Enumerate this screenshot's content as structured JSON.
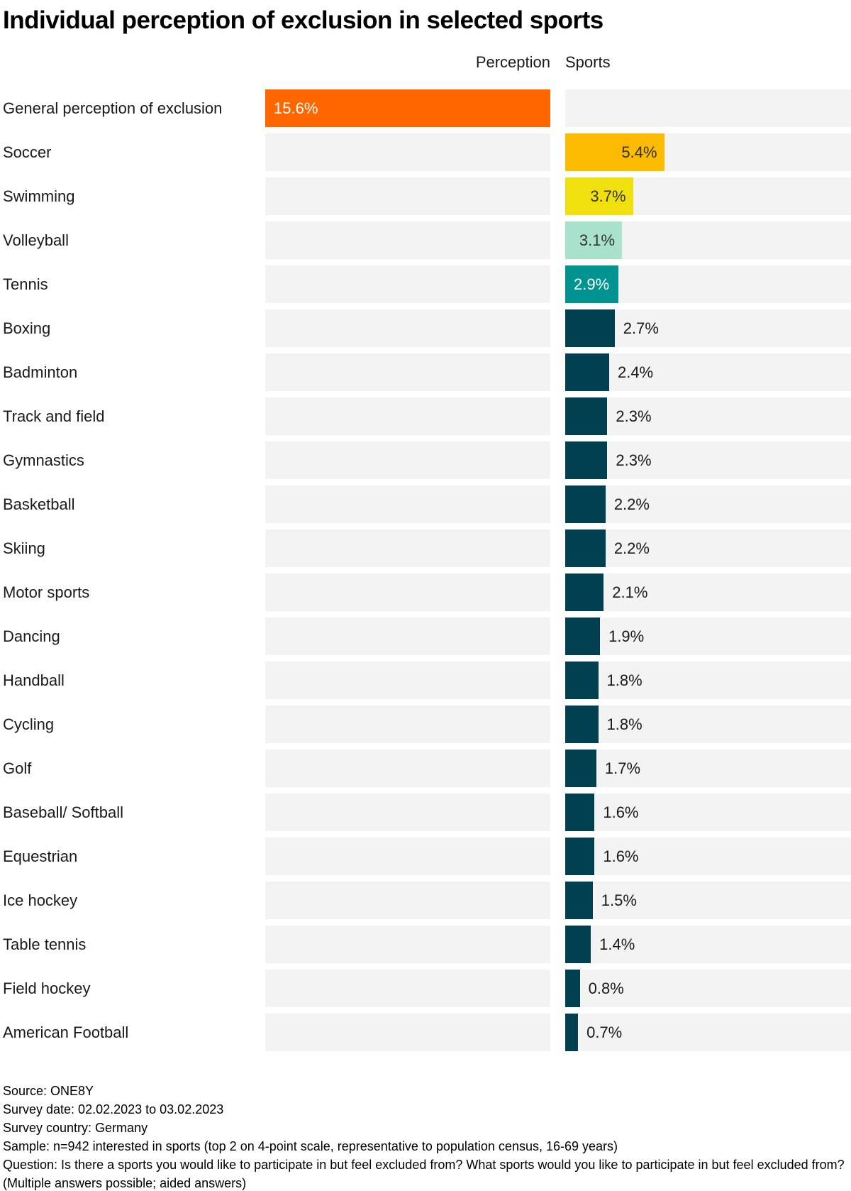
{
  "page": {
    "title": "Individual perception of exclusion in selected sports"
  },
  "headers": {
    "perception": "Perception",
    "sports": "Sports"
  },
  "colors": {
    "background": "#FFFFFF",
    "track": "#F3F3F3",
    "general_bar": "#FF6600",
    "soccer_bar": "#FCBA00",
    "swimming_bar": "#F0E10E",
    "volleyball_bar": "#A8E2CD",
    "tennis_bar": "#009390",
    "default_sport_bar": "#004050",
    "value_dark": "#333333",
    "value_light": "#FFFFFF",
    "text": "#1A1A1A"
  },
  "chart_data": {
    "type": "bar",
    "orientation": "horizontal",
    "title": "Individual perception of exclusion in selected sports",
    "unit": "%",
    "scale_max_percent": 15.6,
    "columns": [
      "Perception",
      "Sports"
    ],
    "legend_position": "none",
    "grid": false,
    "rows": [
      {
        "label": "General perception of exclusion",
        "value": 15.6,
        "display": "15.6%",
        "column": "perception",
        "bar_color": "#FF6600",
        "value_color": "#FFFFFF",
        "value_position": "inside-left"
      },
      {
        "label": "Soccer",
        "value": 5.4,
        "display": "5.4%",
        "column": "sports",
        "bar_color": "#FCBA00",
        "value_color": "#333333",
        "value_position": "inside-right"
      },
      {
        "label": "Swimming",
        "value": 3.7,
        "display": "3.7%",
        "column": "sports",
        "bar_color": "#F0E10E",
        "value_color": "#333333",
        "value_position": "inside-right"
      },
      {
        "label": "Volleyball",
        "value": 3.1,
        "display": "3.1%",
        "column": "sports",
        "bar_color": "#A8E2CD",
        "value_color": "#333333",
        "value_position": "inside-right"
      },
      {
        "label": "Tennis",
        "value": 2.9,
        "display": "2.9%",
        "column": "sports",
        "bar_color": "#009390",
        "value_color": "#FFFFFF",
        "value_position": "inside-left"
      },
      {
        "label": "Boxing",
        "value": 2.7,
        "display": "2.7%",
        "column": "sports",
        "bar_color": "#004050",
        "value_color": "#1A1A1A",
        "value_position": "outside"
      },
      {
        "label": "Badminton",
        "value": 2.4,
        "display": "2.4%",
        "column": "sports",
        "bar_color": "#004050",
        "value_color": "#1A1A1A",
        "value_position": "outside"
      },
      {
        "label": "Track and field",
        "value": 2.3,
        "display": "2.3%",
        "column": "sports",
        "bar_color": "#004050",
        "value_color": "#1A1A1A",
        "value_position": "outside"
      },
      {
        "label": "Gymnastics",
        "value": 2.3,
        "display": "2.3%",
        "column": "sports",
        "bar_color": "#004050",
        "value_color": "#1A1A1A",
        "value_position": "outside"
      },
      {
        "label": "Basketball",
        "value": 2.2,
        "display": "2.2%",
        "column": "sports",
        "bar_color": "#004050",
        "value_color": "#1A1A1A",
        "value_position": "outside"
      },
      {
        "label": "Skiing",
        "value": 2.2,
        "display": "2.2%",
        "column": "sports",
        "bar_color": "#004050",
        "value_color": "#1A1A1A",
        "value_position": "outside"
      },
      {
        "label": "Motor sports",
        "value": 2.1,
        "display": "2.1%",
        "column": "sports",
        "bar_color": "#004050",
        "value_color": "#1A1A1A",
        "value_position": "outside"
      },
      {
        "label": "Dancing",
        "value": 1.9,
        "display": "1.9%",
        "column": "sports",
        "bar_color": "#004050",
        "value_color": "#1A1A1A",
        "value_position": "outside"
      },
      {
        "label": "Handball",
        "value": 1.8,
        "display": "1.8%",
        "column": "sports",
        "bar_color": "#004050",
        "value_color": "#1A1A1A",
        "value_position": "outside"
      },
      {
        "label": "Cycling",
        "value": 1.8,
        "display": "1.8%",
        "column": "sports",
        "bar_color": "#004050",
        "value_color": "#1A1A1A",
        "value_position": "outside"
      },
      {
        "label": "Golf",
        "value": 1.7,
        "display": "1.7%",
        "column": "sports",
        "bar_color": "#004050",
        "value_color": "#1A1A1A",
        "value_position": "outside"
      },
      {
        "label": "Baseball/ Softball",
        "value": 1.6,
        "display": "1.6%",
        "column": "sports",
        "bar_color": "#004050",
        "value_color": "#1A1A1A",
        "value_position": "outside"
      },
      {
        "label": "Equestrian",
        "value": 1.6,
        "display": "1.6%",
        "column": "sports",
        "bar_color": "#004050",
        "value_color": "#1A1A1A",
        "value_position": "outside"
      },
      {
        "label": "Ice hockey",
        "value": 1.5,
        "display": "1.5%",
        "column": "sports",
        "bar_color": "#004050",
        "value_color": "#1A1A1A",
        "value_position": "outside"
      },
      {
        "label": "Table tennis",
        "value": 1.4,
        "display": "1.4%",
        "column": "sports",
        "bar_color": "#004050",
        "value_color": "#1A1A1A",
        "value_position": "outside"
      },
      {
        "label": "Field hockey",
        "value": 0.8,
        "display": "0.8%",
        "column": "sports",
        "bar_color": "#004050",
        "value_color": "#1A1A1A",
        "value_position": "outside"
      },
      {
        "label": "American Football",
        "value": 0.7,
        "display": "0.7%",
        "column": "sports",
        "bar_color": "#004050",
        "value_color": "#1A1A1A",
        "value_position": "outside"
      }
    ]
  },
  "footer": {
    "source": "Source: ONE8Y",
    "survey_date": "Survey date: 02.02.2023 to 03.02.2023",
    "survey_country": "Survey country: Germany",
    "sample": "Sample: n=942 interested in sports (top 2 on 4-point scale, representative to population census, 16-69 years)",
    "question": "Question: Is there a sports you would like to participate in but feel excluded from? What sports would you like to participate in but feel excluded from? (Multiple answers possible; aided answers)"
  }
}
